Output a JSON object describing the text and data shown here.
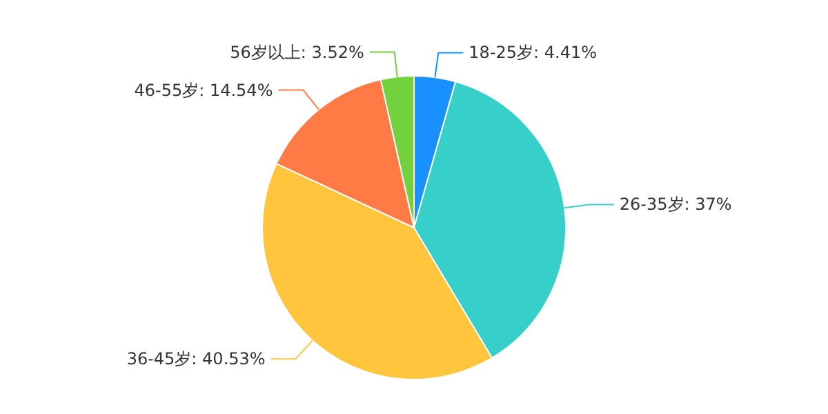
{
  "chart_data": {
    "type": "pie",
    "categories": [
      "18-25岁",
      "26-35岁",
      "36-45岁",
      "46-55岁",
      "56岁以上"
    ],
    "values": [
      4.41,
      37,
      40.53,
      14.54,
      3.52
    ],
    "colors": [
      "#1890ff",
      "#36cfc9",
      "#ffc53d",
      "#ff7a45",
      "#73d13d"
    ],
    "value_labels": [
      "4.41%",
      "37%",
      "40.53%",
      "14.54%",
      "3.52%"
    ]
  }
}
